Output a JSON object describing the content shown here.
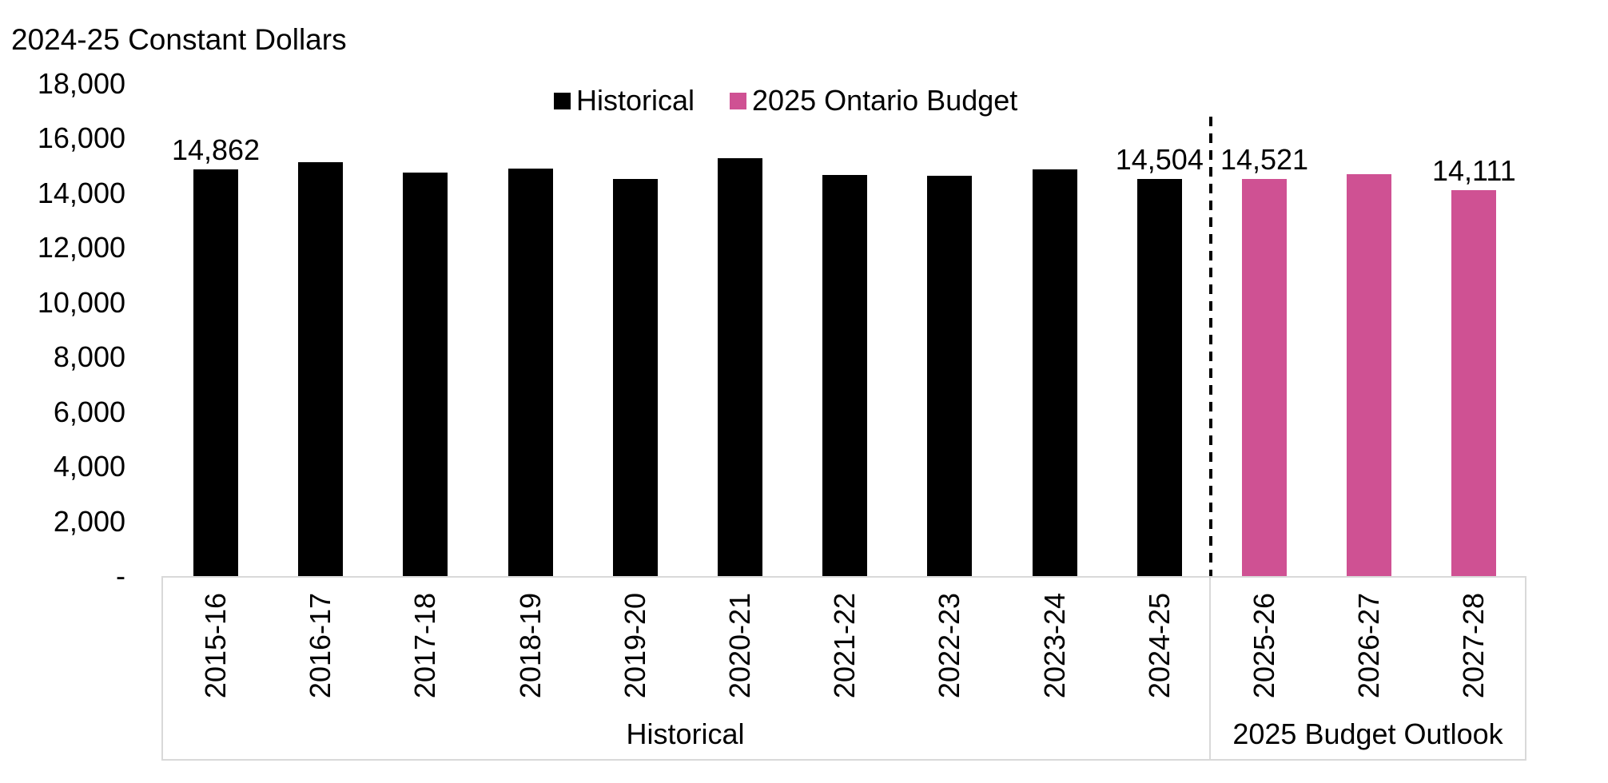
{
  "title": "2024-25 Constant Dollars",
  "legend": {
    "items": [
      {
        "label": "Historical",
        "color": "#000000"
      },
      {
        "label": "2025 Ontario Budget",
        "color": "#CF5193"
      }
    ]
  },
  "chart_data": {
    "type": "bar",
    "title": "2024-25 Constant Dollars",
    "ylim": [
      0,
      18000
    ],
    "grid": false,
    "legend_position": "top-center",
    "y_ticks": [
      {
        "label": "18,000",
        "value": 18000
      },
      {
        "label": "16,000",
        "value": 16000
      },
      {
        "label": "14,000",
        "value": 14000
      },
      {
        "label": "12,000",
        "value": 12000
      },
      {
        "label": "10,000",
        "value": 10000
      },
      {
        "label": "8,000",
        "value": 8000
      },
      {
        "label": "6,000",
        "value": 6000
      },
      {
        "label": "4,000",
        "value": 4000
      },
      {
        "label": "2,000",
        "value": 2000
      },
      {
        "label": "-",
        "value": 0
      }
    ],
    "categories": [
      "2015-16",
      "2016-17",
      "2017-18",
      "2018-19",
      "2019-20",
      "2020-21",
      "2021-22",
      "2022-23",
      "2023-24",
      "2024-25",
      "2025-26",
      "2026-27",
      "2027-28"
    ],
    "series": [
      {
        "name": "Historical",
        "color": "#000000",
        "categories": [
          "2015-16",
          "2016-17",
          "2017-18",
          "2018-19",
          "2019-20",
          "2020-21",
          "2021-22",
          "2022-23",
          "2023-24",
          "2024-25"
        ],
        "values": [
          14862,
          15130,
          14750,
          14880,
          14510,
          15270,
          14660,
          14630,
          14860,
          14504
        ]
      },
      {
        "name": "2025 Ontario Budget",
        "color": "#CF5193",
        "categories": [
          "2025-26",
          "2026-27",
          "2027-28"
        ],
        "values": [
          14521,
          14690,
          14111
        ]
      }
    ],
    "data_labels": [
      {
        "category": "2015-16",
        "text": "14,862"
      },
      {
        "category": "2024-25",
        "text": "14,504"
      },
      {
        "category": "2025-26",
        "text": "14,521"
      },
      {
        "category": "2027-28",
        "text": "14,111"
      }
    ],
    "groups": [
      {
        "label": "Historical",
        "category_count": 10
      },
      {
        "label": "2025 Budget Outlook",
        "category_count": 3
      }
    ],
    "separator": {
      "style": "dashed-vertical-line",
      "after_category": "2024-25"
    }
  }
}
